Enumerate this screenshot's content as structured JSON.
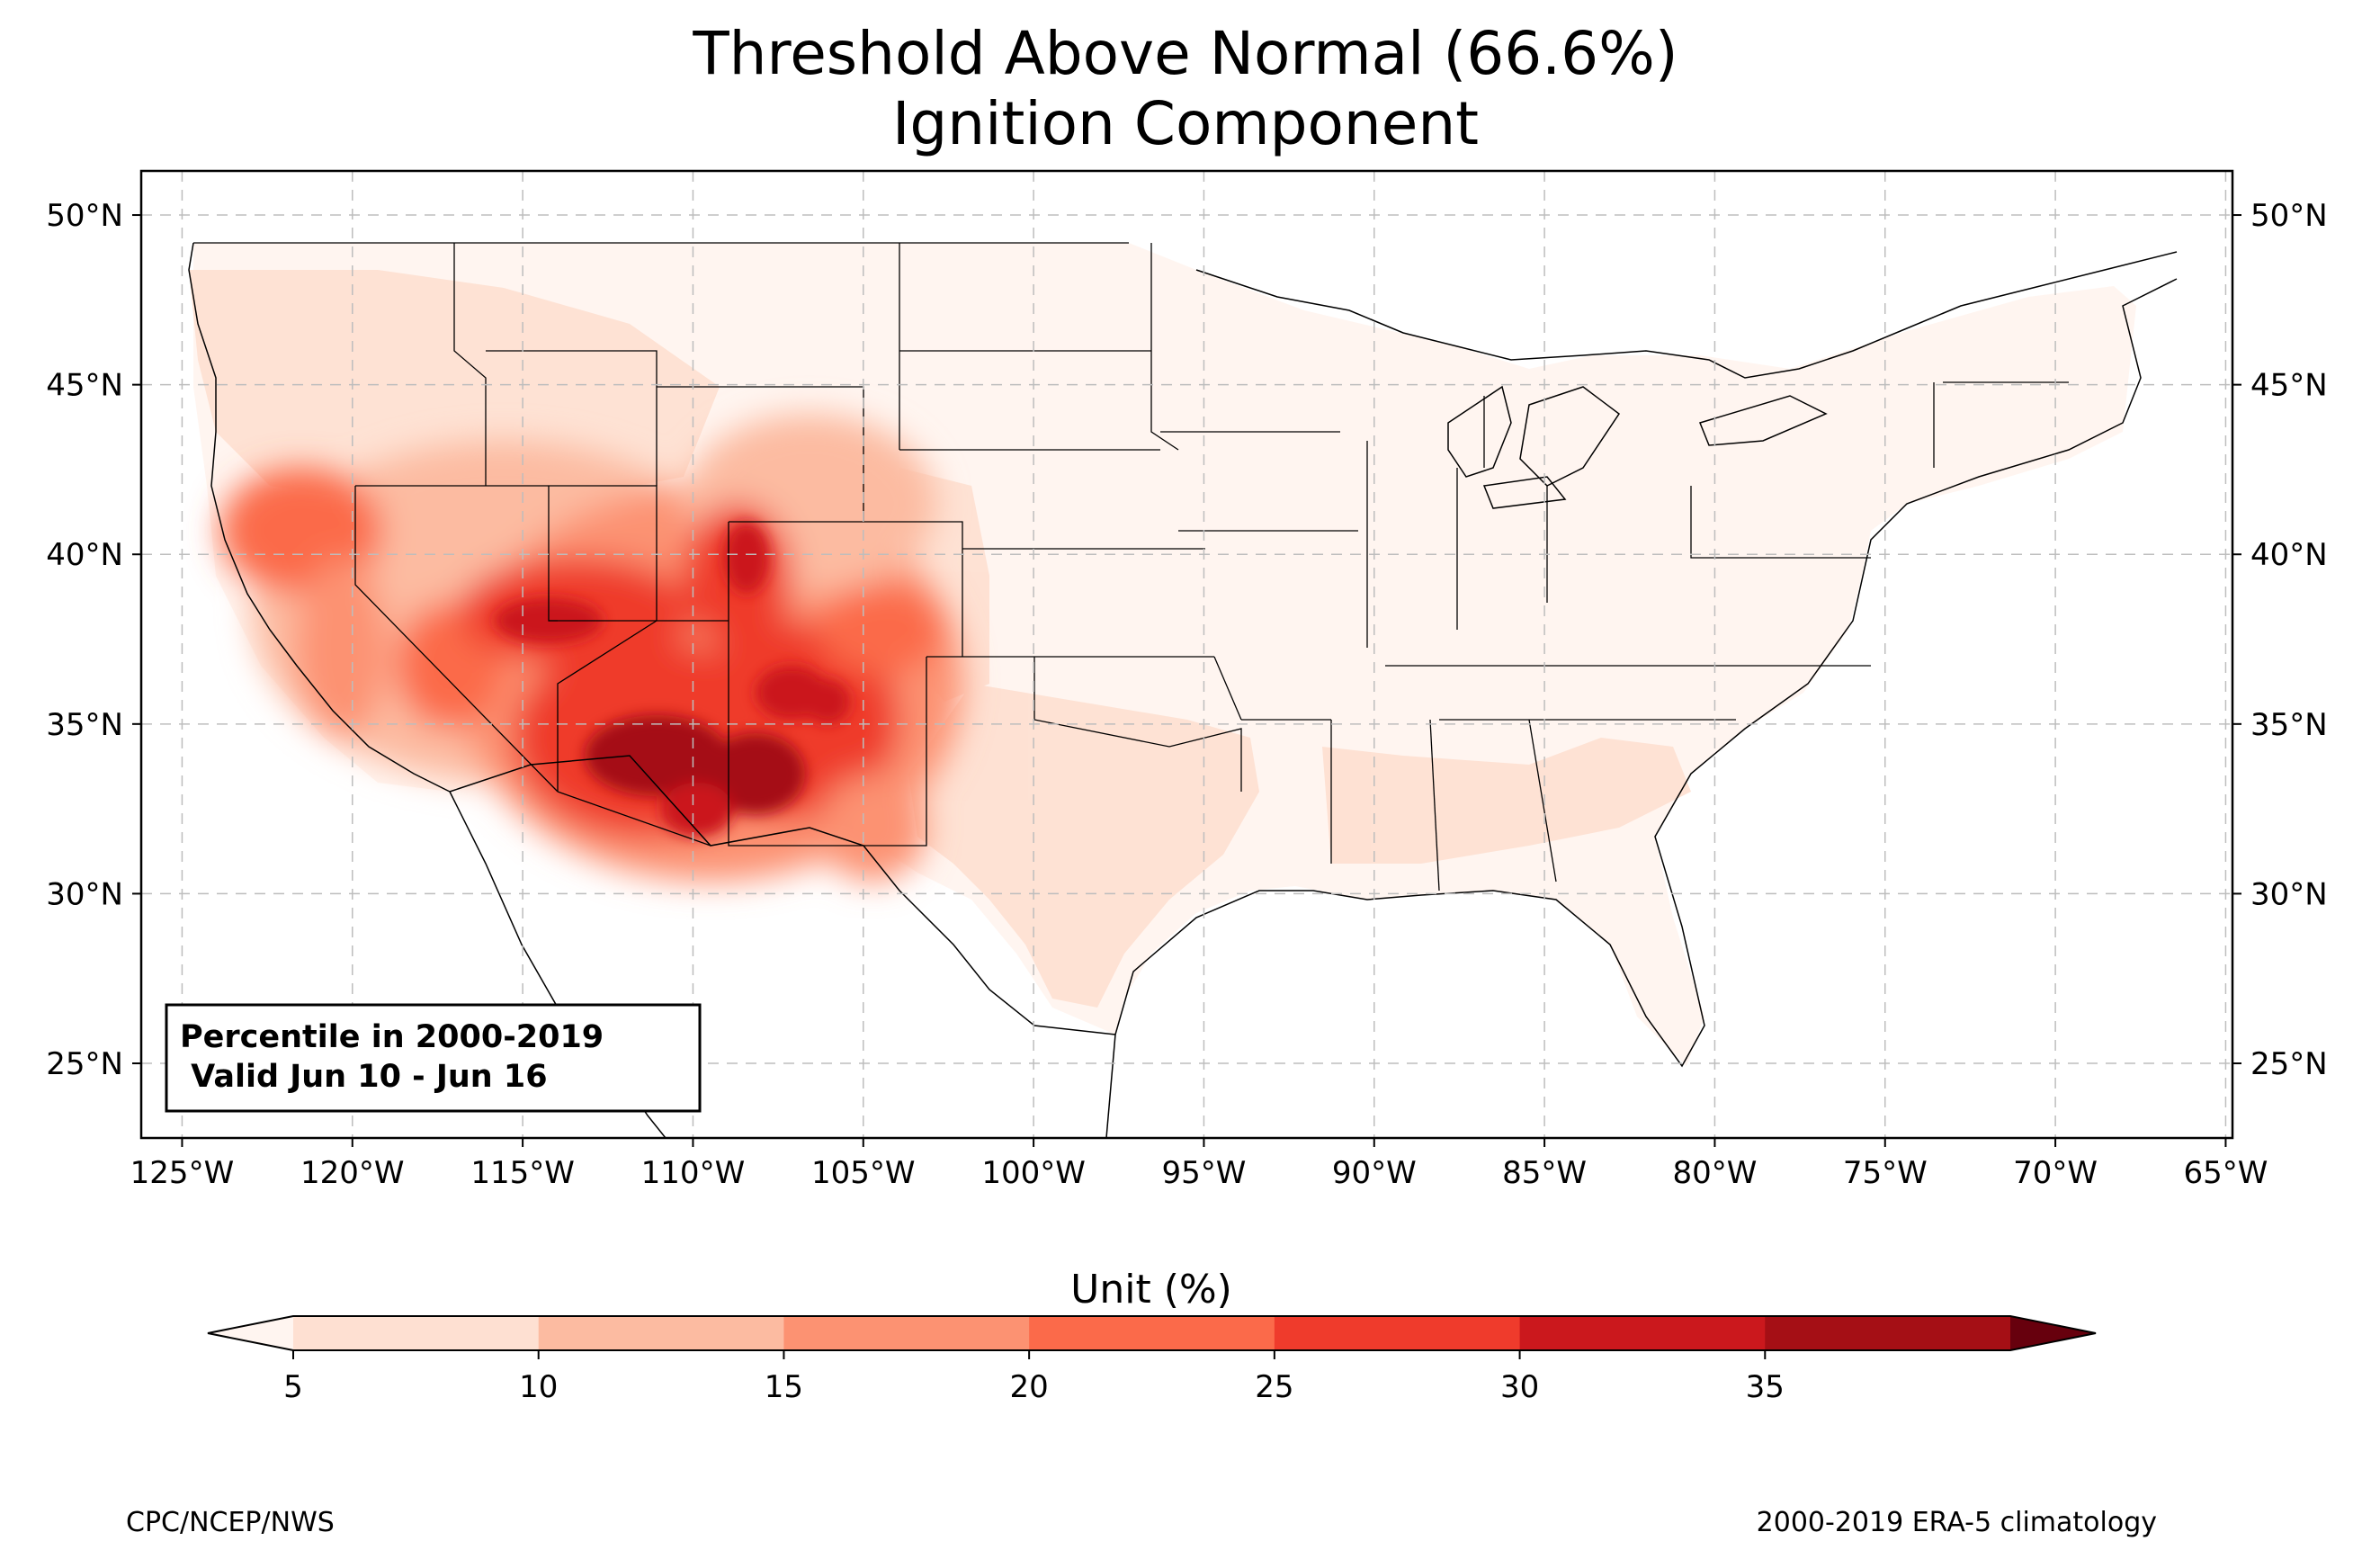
{
  "title": {
    "line1": "Threshold Above Normal (66.6%)",
    "line2": "Ignition Component"
  },
  "map": {
    "lon_range": [
      -126.2,
      -64.8
    ],
    "lat_range": [
      22.8,
      51.3
    ],
    "lon_ticks": [
      {
        "value": -125,
        "label": "125°W"
      },
      {
        "value": -120,
        "label": "120°W"
      },
      {
        "value": -115,
        "label": "115°W"
      },
      {
        "value": -110,
        "label": "110°W"
      },
      {
        "value": -105,
        "label": "105°W"
      },
      {
        "value": -100,
        "label": "100°W"
      },
      {
        "value": -95,
        "label": "95°W"
      },
      {
        "value": -90,
        "label": "90°W"
      },
      {
        "value": -85,
        "label": "85°W"
      },
      {
        "value": -80,
        "label": "80°W"
      },
      {
        "value": -75,
        "label": "75°W"
      },
      {
        "value": -70,
        "label": "70°W"
      },
      {
        "value": -65,
        "label": "65°W"
      }
    ],
    "lat_ticks": [
      {
        "value": 25,
        "label": "25°N"
      },
      {
        "value": 30,
        "label": "30°N"
      },
      {
        "value": 35,
        "label": "35°N"
      },
      {
        "value": 40,
        "label": "40°N"
      },
      {
        "value": 45,
        "label": "45°N"
      },
      {
        "value": 50,
        "label": "50°N"
      }
    ],
    "info_box": {
      "line1": "Percentile in 2000-2019",
      "line2": " Valid Jun 10 - Jun 16"
    }
  },
  "colorbar": {
    "label": "Unit (%)",
    "levels": [
      "5",
      "10",
      "15",
      "20",
      "25",
      "30",
      "35"
    ],
    "colors": [
      "#fee0d2",
      "#fcbba1",
      "#fc9272",
      "#fb6a4a",
      "#ef3b2c",
      "#cb181d",
      "#a50f15"
    ],
    "under_color": "#fff5f0",
    "over_color": "#67000d"
  },
  "footer": {
    "left": "CPC/NCEP/NWS",
    "right": "2000-2019 ERA-5 climatology"
  },
  "chart_data": {
    "type": "heatmap",
    "title": "Threshold Above Normal (66.6%)\nIgnition Component",
    "xlabel": "",
    "ylabel": "",
    "colorbar_label": "Unit (%)",
    "xlim": [
      -126.2,
      -64.8
    ],
    "ylim": [
      22.8,
      51.3
    ],
    "levels": [
      5,
      10,
      15,
      20,
      25,
      30,
      35
    ],
    "grid": true,
    "hotspots": [
      {
        "lon": -110.5,
        "lat": 33.5,
        "value": 36
      },
      {
        "lon": -108.5,
        "lat": 34.0,
        "value": 34
      },
      {
        "lon": -110.0,
        "lat": 32.3,
        "value": 30
      },
      {
        "lon": -107.5,
        "lat": 35.5,
        "value": 30
      },
      {
        "lon": -105.5,
        "lat": 35.2,
        "value": 28
      },
      {
        "lon": -112.5,
        "lat": 37.8,
        "value": 30
      },
      {
        "lon": -109.5,
        "lat": 38.5,
        "value": 28
      },
      {
        "lon": -109.0,
        "lat": 40.0,
        "value": 26
      },
      {
        "lon": -105.0,
        "lat": 38.0,
        "value": 22
      },
      {
        "lon": -114.0,
        "lat": 36.0,
        "value": 20
      },
      {
        "lon": -117.0,
        "lat": 36.0,
        "value": 20
      },
      {
        "lon": -121.5,
        "lat": 40.5,
        "value": 20
      },
      {
        "lon": -118.0,
        "lat": 38.5,
        "value": 14
      },
      {
        "lon": -104.0,
        "lat": 31.5,
        "value": 16
      },
      {
        "lon": -107.5,
        "lat": 42.5,
        "value": 14
      },
      {
        "lon": -117.0,
        "lat": 44.5,
        "value": 11
      },
      {
        "lon": -119.0,
        "lat": 47.5,
        "value": 11
      },
      {
        "lon": -88.0,
        "lat": 32.0,
        "value": 10
      },
      {
        "lon": -96.0,
        "lat": 32.0,
        "value": 9
      },
      {
        "lon": -102.0,
        "lat": 39.0,
        "value": 9
      }
    ]
  }
}
